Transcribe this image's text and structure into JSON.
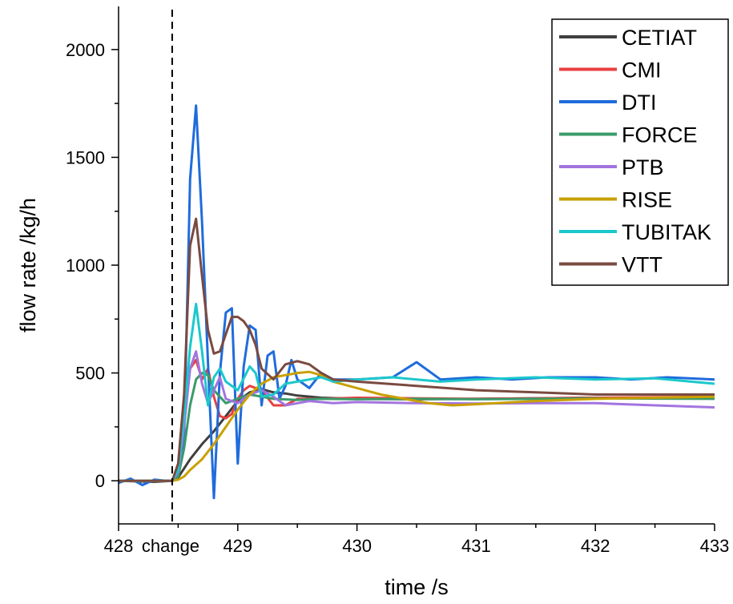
{
  "chart_data": {
    "type": "line",
    "xlabel": "time /s",
    "ylabel": "flow rate /kg/h",
    "xlim": [
      428,
      433
    ],
    "ylim": [
      -200,
      2200
    ],
    "x_ticks": [
      {
        "value": 428,
        "label": "428"
      },
      {
        "value": 429,
        "label": "429"
      },
      {
        "value": 430,
        "label": "430"
      },
      {
        "value": 431,
        "label": "431"
      },
      {
        "value": 432,
        "label": "432"
      },
      {
        "value": 433,
        "label": "433"
      }
    ],
    "y_ticks": [
      0,
      500,
      1000,
      1500,
      2000
    ],
    "annotations": [
      {
        "x": 428.45,
        "label": "change",
        "style": "dashed-vertical-line"
      }
    ],
    "grid": false,
    "legend_position": "top-right",
    "series": [
      {
        "name": "CETIAT",
        "color": "#3f3f3f",
        "x": [
          428,
          428.3,
          428.45,
          428.5,
          428.6,
          428.7,
          428.8,
          428.9,
          429.0,
          429.1,
          429.2,
          429.3,
          429.4,
          429.5,
          429.7,
          430,
          430.5,
          431,
          432,
          433
        ],
        "y": [
          0,
          -5,
          0,
          15,
          100,
          170,
          230,
          300,
          370,
          410,
          425,
          410,
          405,
          395,
          385,
          380,
          378,
          380,
          385,
          385
        ]
      },
      {
        "name": "CMI",
        "color": "#e8403f",
        "x": [
          428,
          428.45,
          428.5,
          428.55,
          428.6,
          428.65,
          428.7,
          428.75,
          428.8,
          428.85,
          428.9,
          428.95,
          429.0,
          429.05,
          429.1,
          429.2,
          429.3,
          429.4,
          429.5,
          429.7,
          430,
          431,
          432,
          433
        ],
        "y": [
          0,
          0,
          50,
          300,
          520,
          560,
          470,
          520,
          390,
          300,
          290,
          310,
          380,
          420,
          440,
          420,
          350,
          350,
          380,
          380,
          385,
          380,
          385,
          390
        ]
      },
      {
        "name": "DTI",
        "color": "#1f6cdc",
        "x": [
          428,
          428.1,
          428.2,
          428.3,
          428.4,
          428.45,
          428.5,
          428.55,
          428.6,
          428.65,
          428.7,
          428.75,
          428.8,
          428.85,
          428.9,
          428.95,
          429.0,
          429.05,
          429.1,
          429.15,
          429.2,
          429.25,
          429.3,
          429.35,
          429.4,
          429.45,
          429.5,
          429.6,
          429.7,
          429.8,
          430,
          430.3,
          430.5,
          430.7,
          431,
          431.3,
          431.6,
          432,
          432.3,
          432.6,
          433
        ],
        "y": [
          -10,
          10,
          -20,
          5,
          0,
          0,
          30,
          200,
          1400,
          1740,
          1200,
          550,
          -80,
          500,
          780,
          800,
          80,
          530,
          720,
          700,
          350,
          580,
          600,
          380,
          440,
          560,
          470,
          430,
          500,
          470,
          470,
          480,
          550,
          470,
          480,
          470,
          480,
          480,
          470,
          480,
          470
        ]
      },
      {
        "name": "FORCE",
        "color": "#3a9b6a",
        "x": [
          428,
          428.45,
          428.5,
          428.55,
          428.6,
          428.65,
          428.7,
          428.75,
          428.8,
          428.9,
          429.0,
          429.1,
          429.2,
          429.3,
          429.5,
          429.7,
          430,
          430.5,
          431,
          432,
          433
        ],
        "y": [
          0,
          0,
          20,
          150,
          350,
          470,
          500,
          490,
          420,
          360,
          380,
          400,
          390,
          380,
          375,
          380,
          378,
          380,
          378,
          382,
          380
        ]
      },
      {
        "name": "PTB",
        "color": "#a274e0",
        "x": [
          428,
          428.45,
          428.5,
          428.55,
          428.6,
          428.65,
          428.7,
          428.75,
          428.8,
          428.85,
          428.9,
          429.0,
          429.1,
          429.2,
          429.3,
          429.4,
          429.6,
          429.8,
          430,
          430.5,
          431,
          431.5,
          432,
          432.5,
          433
        ],
        "y": [
          0,
          0,
          40,
          250,
          520,
          600,
          450,
          360,
          420,
          480,
          380,
          360,
          400,
          420,
          390,
          350,
          370,
          360,
          365,
          360,
          358,
          360,
          360,
          350,
          340
        ]
      },
      {
        "name": "RISE",
        "color": "#c9a000",
        "x": [
          428,
          428.45,
          428.5,
          428.55,
          428.6,
          428.7,
          428.8,
          428.9,
          429.0,
          429.1,
          429.2,
          429.3,
          429.4,
          429.5,
          429.6,
          429.7,
          429.8,
          430,
          430.2,
          430.4,
          430.6,
          430.8,
          431,
          431.5,
          432,
          432.5,
          433
        ],
        "y": [
          0,
          0,
          5,
          20,
          50,
          100,
          170,
          250,
          330,
          400,
          450,
          480,
          490,
          500,
          505,
          490,
          460,
          430,
          400,
          380,
          360,
          350,
          355,
          370,
          380,
          385,
          390
        ]
      },
      {
        "name": "TUBITAK",
        "color": "#1bc8cc",
        "x": [
          428,
          428.45,
          428.5,
          428.55,
          428.6,
          428.65,
          428.7,
          428.75,
          428.8,
          428.85,
          428.9,
          429.0,
          429.1,
          429.15,
          429.2,
          429.3,
          429.4,
          429.5,
          429.6,
          429.7,
          429.8,
          430,
          430.3,
          430.5,
          430.7,
          431,
          431.5,
          432,
          432.5,
          433
        ],
        "y": [
          0,
          0,
          50,
          300,
          620,
          820,
          600,
          350,
          480,
          520,
          460,
          420,
          530,
          500,
          390,
          400,
          450,
          460,
          470,
          480,
          460,
          470,
          480,
          470,
          460,
          470,
          480,
          470,
          475,
          450
        ]
      },
      {
        "name": "VTT",
        "color": "#7a4a40",
        "x": [
          428,
          428.45,
          428.5,
          428.55,
          428.6,
          428.65,
          428.7,
          428.75,
          428.8,
          428.85,
          428.9,
          428.95,
          429.0,
          429.05,
          429.1,
          429.15,
          429.2,
          429.3,
          429.4,
          429.5,
          429.6,
          429.7,
          429.8,
          430,
          430.5,
          431,
          431.5,
          432,
          432.5,
          433
        ],
        "y": [
          0,
          0,
          80,
          400,
          1090,
          1215,
          950,
          700,
          590,
          600,
          680,
          760,
          760,
          740,
          700,
          630,
          520,
          470,
          540,
          555,
          540,
          500,
          470,
          460,
          440,
          420,
          410,
          400,
          400,
          400
        ]
      }
    ]
  }
}
